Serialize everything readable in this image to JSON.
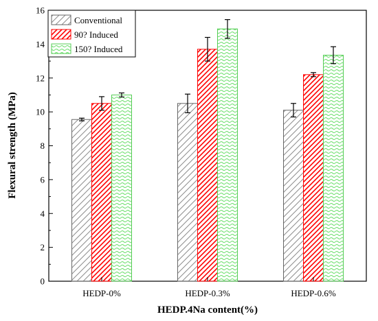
{
  "chart_data": {
    "type": "bar",
    "title": "",
    "xlabel": "HEDP.4Na content(%)",
    "ylabel": "Flexural strength (MPa)",
    "ylim": [
      0,
      16
    ],
    "yticks": [
      0,
      2,
      4,
      6,
      8,
      10,
      12,
      14,
      16
    ],
    "grid": false,
    "legend_position": "top-left",
    "categories": [
      "HEDP-0%",
      "HEDP-0.3%",
      "HEDP-0.6%"
    ],
    "series": [
      {
        "name": "Conventional",
        "values": [
          9.55,
          10.5,
          10.1
        ],
        "errors": [
          0.08,
          0.55,
          0.4
        ],
        "color": "#808080",
        "pattern": "diagonal-hatch"
      },
      {
        "name": "90? Induced",
        "values": [
          10.5,
          13.7,
          12.2
        ],
        "errors": [
          0.4,
          0.7,
          0.12
        ],
        "color": "#ff0000",
        "pattern": "diagonal-hatch"
      },
      {
        "name": "150? Induced",
        "values": [
          11.0,
          14.9,
          13.35
        ],
        "errors": [
          0.12,
          0.55,
          0.5
        ],
        "color": "#66dd66",
        "pattern": "wavy-lines"
      }
    ]
  }
}
